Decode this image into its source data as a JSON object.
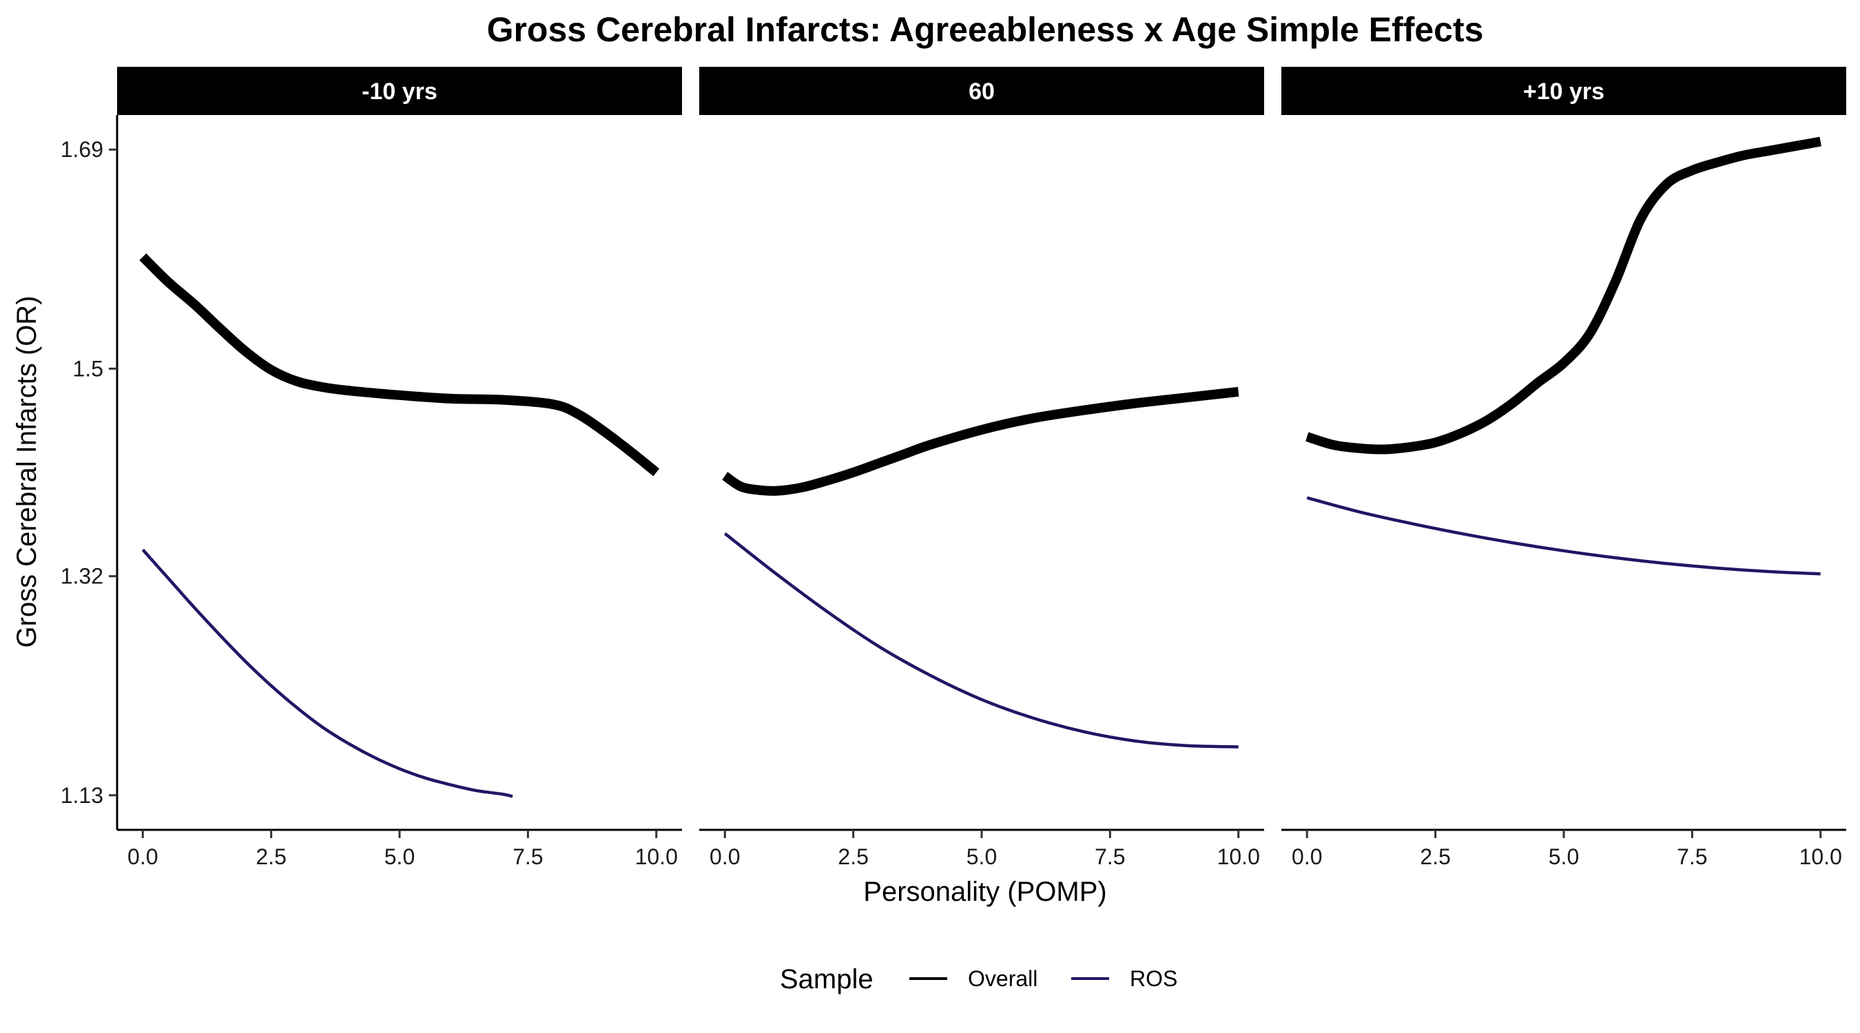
{
  "colors": {
    "overall": "#000000",
    "ros": "#231564",
    "strip_bg": "#000000",
    "strip_text": "#ffffff",
    "background": "#ffffff"
  },
  "chart_data": {
    "type": "line",
    "title": "Gross Cerebral Infarcts: Agreeableness x Age Simple Effects",
    "xlabel": "Personality (POMP)",
    "ylabel": "Gross Cerebral Infarcts (OR)",
    "xlim": [
      -0.5,
      10.5
    ],
    "ylim": [
      1.1,
      1.72
    ],
    "x_ticks": [
      0,
      2.5,
      5,
      7.5,
      10
    ],
    "x_tick_labels": [
      "0.0",
      "2.5",
      "5.0",
      "7.5",
      "10.0"
    ],
    "y_ticks": [
      1.13,
      1.32,
      1.5,
      1.69
    ],
    "y_tick_labels": [
      "1.13",
      "1.32",
      "1.5",
      "1.69"
    ],
    "grid": false,
    "legend": {
      "title": "Sample",
      "position": "bottom",
      "entries": [
        "Overall",
        "ROS"
      ]
    },
    "facets": [
      {
        "label": "-10 yrs",
        "series": [
          {
            "name": "Overall",
            "x": [
              0,
              0.5,
              1,
              1.5,
              2,
              2.5,
              3,
              3.5,
              4,
              5,
              6,
              7,
              8,
              8.5,
              9,
              9.5,
              10
            ],
            "y": [
              1.597,
              1.575,
              1.556,
              1.535,
              1.515,
              1.499,
              1.489,
              1.484,
              1.481,
              1.477,
              1.474,
              1.473,
              1.469,
              1.46,
              1.445,
              1.428,
              1.41
            ]
          },
          {
            "name": "ROS",
            "x": [
              0,
              0.5,
              1,
              1.5,
              2,
              2.5,
              3,
              3.5,
              4,
              4.5,
              5,
              5.5,
              6,
              6.5,
              7,
              7.2
            ],
            "y": [
              1.343,
              1.318,
              1.293,
              1.269,
              1.246,
              1.225,
              1.206,
              1.189,
              1.175,
              1.163,
              1.153,
              1.145,
              1.139,
              1.134,
              1.131,
              1.129
            ]
          }
        ]
      },
      {
        "label": "60",
        "series": [
          {
            "name": "Overall",
            "x": [
              0,
              0.3,
              0.6,
              1,
              1.5,
              2,
              2.5,
              3,
              3.5,
              4,
              5,
              6,
              7,
              8,
              9,
              10
            ],
            "y": [
              1.407,
              1.398,
              1.395,
              1.394,
              1.397,
              1.403,
              1.41,
              1.418,
              1.426,
              1.434,
              1.447,
              1.457,
              1.464,
              1.47,
              1.475,
              1.48
            ]
          },
          {
            "name": "ROS",
            "x": [
              0,
              1,
              2,
              3,
              4,
              5,
              6,
              7,
              8,
              9,
              10
            ],
            "y": [
              1.357,
              1.322,
              1.289,
              1.259,
              1.234,
              1.213,
              1.197,
              1.185,
              1.177,
              1.173,
              1.172
            ]
          }
        ]
      },
      {
        "label": "+10 yrs",
        "series": [
          {
            "name": "Overall",
            "x": [
              0,
              0.5,
              1,
              1.5,
              2,
              2.5,
              3,
              3.5,
              4,
              4.5,
              5,
              5.5,
              6,
              6.5,
              7,
              7.5,
              8,
              8.5,
              9,
              9.5,
              10
            ],
            "y": [
              1.441,
              1.434,
              1.431,
              1.43,
              1.432,
              1.436,
              1.444,
              1.455,
              1.47,
              1.488,
              1.505,
              1.53,
              1.575,
              1.63,
              1.66,
              1.672,
              1.679,
              1.685,
              1.689,
              1.693,
              1.697
            ]
          },
          {
            "name": "ROS",
            "x": [
              0,
              1,
              2,
              3,
              4,
              5,
              6,
              7,
              8,
              9,
              10
            ],
            "y": [
              1.388,
              1.376,
              1.366,
              1.357,
              1.349,
              1.342,
              1.336,
              1.331,
              1.327,
              1.324,
              1.322
            ]
          }
        ]
      }
    ]
  }
}
